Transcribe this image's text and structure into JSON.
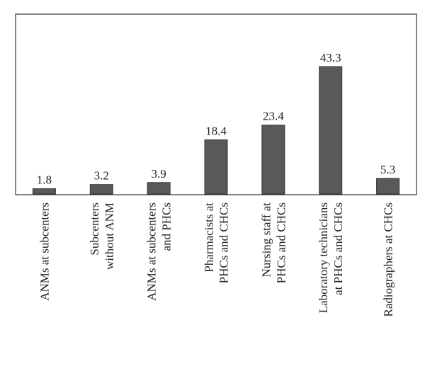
{
  "chart_data": {
    "type": "bar",
    "categories": [
      [
        "ANMs at subcenters"
      ],
      [
        "Subcenters",
        "without ANM"
      ],
      [
        "ANMs at subcenters",
        "and PHCs"
      ],
      [
        "Pharmacists at",
        "PHCs and CHCs"
      ],
      [
        "Nursing staff at",
        "PHCs and CHCs"
      ],
      [
        "Laboratory technicians",
        "at PHCs and CHCs"
      ],
      [
        "Radiographers at CHCs"
      ]
    ],
    "values": [
      1.8,
      3.2,
      3.9,
      18.4,
      23.4,
      43.3,
      5.3
    ],
    "color": "#595959"
  }
}
